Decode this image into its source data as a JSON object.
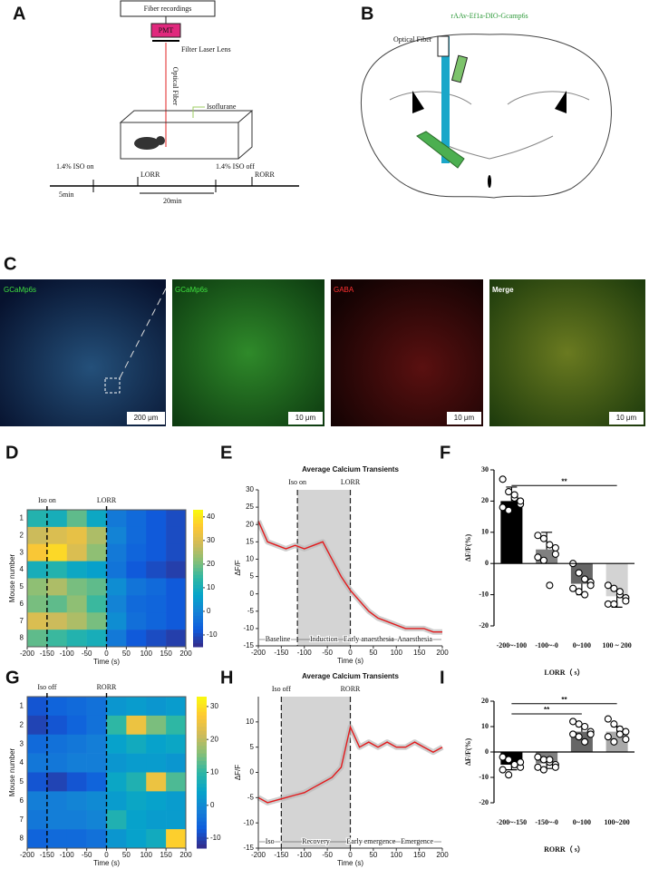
{
  "panel_a": {
    "label": "A",
    "box_title": "Fiber recordings",
    "pmt": "PMT",
    "filter": "Filter Laser Lens",
    "fiber": "Optical Fiber",
    "gas": "Isoflurane",
    "iso_on": "1.4% ISO  on",
    "lorr": "LORR",
    "iso_off": "1.4% ISO off",
    "rorr": "RORR",
    "pre": "5min",
    "span": "20min"
  },
  "panel_b": {
    "label": "B",
    "virus": "rAAv-Ef1a-DIO-Gcamp6s",
    "fiber": "Optical Fiber"
  },
  "panel_c": {
    "label": "C",
    "images": [
      {
        "title": "GCaMp6s",
        "scale": "200 μm"
      },
      {
        "title": "GCaMp6s",
        "scale": "10 μm"
      },
      {
        "title": "GABA",
        "scale": "10 μm"
      },
      {
        "title": "Merge",
        "scale": "10 μm"
      }
    ]
  },
  "chart_data": [
    {
      "type": "heatmap",
      "panel_label": "D",
      "ylabel": "Mouse number",
      "xlabel": "Time (s)",
      "rows": [
        1,
        2,
        3,
        4,
        5,
        6,
        7,
        8
      ],
      "xlim": [
        -200,
        200
      ],
      "xticks": [
        -200,
        -150,
        -100,
        -50,
        0,
        50,
        100,
        150,
        200
      ],
      "clim": [
        -15,
        43
      ],
      "cticks": [
        -10,
        0,
        10,
        20,
        30,
        40
      ],
      "markers": [
        {
          "x": -150,
          "label": "Iso on"
        },
        {
          "x": 0,
          "label": "LORR"
        }
      ],
      "values": [
        [
          12,
          10,
          18,
          8,
          -2,
          -5,
          -8,
          -10
        ],
        [
          28,
          30,
          32,
          25,
          0,
          -5,
          -8,
          -10
        ],
        [
          35,
          38,
          30,
          22,
          -2,
          -6,
          -8,
          -10
        ],
        [
          10,
          12,
          8,
          6,
          -3,
          -8,
          -10,
          -12
        ],
        [
          22,
          25,
          20,
          18,
          2,
          -3,
          -5,
          -8
        ],
        [
          20,
          18,
          22,
          15,
          0,
          -5,
          -6,
          -8
        ],
        [
          30,
          28,
          25,
          20,
          2,
          -4,
          -6,
          -8
        ],
        [
          18,
          15,
          12,
          10,
          -2,
          -8,
          -10,
          -12
        ]
      ]
    },
    {
      "type": "line",
      "panel_label": "E",
      "title": "Average Calcium Transients",
      "ylabel": "ΔF/F",
      "xlabel": "Time (s)",
      "xlim": [
        -200,
        200
      ],
      "xticks": [
        -200,
        -150,
        -100,
        -50,
        0,
        50,
        100,
        150,
        200
      ],
      "ylim": [
        -15,
        30
      ],
      "yticks": [
        -15,
        -10,
        -5,
        0,
        5,
        10,
        15,
        20,
        25,
        30
      ],
      "color": "#e31a1c",
      "markers": [
        {
          "x": -115,
          "label": "Iso on"
        },
        {
          "x": 0,
          "label": "LORR"
        }
      ],
      "phases": [
        {
          "label": "Baseline",
          "from": -200,
          "to": -115
        },
        {
          "label": "Induction",
          "from": -115,
          "to": 0
        },
        {
          "label": "Early anaesthesia",
          "from": 0,
          "to": 80
        },
        {
          "label": "Anaesthesia",
          "from": 80,
          "to": 200
        }
      ],
      "x": [
        -200,
        -180,
        -160,
        -140,
        -120,
        -100,
        -80,
        -60,
        -40,
        -20,
        0,
        20,
        40,
        60,
        80,
        100,
        120,
        140,
        160,
        180,
        200
      ],
      "values": [
        21,
        15,
        14,
        13,
        14,
        13,
        14,
        15,
        10,
        5,
        1,
        -2,
        -5,
        -7,
        -8,
        -9,
        -10,
        -10,
        -10,
        -11,
        -11
      ]
    },
    {
      "type": "bar",
      "panel_label": "F",
      "ylabel": "ΔF/F(%)",
      "xlabel": "LORR（ s）",
      "categories": [
        "-200~-100",
        "-100~-0",
        "0~100",
        "100 ~ 200"
      ],
      "values": [
        20,
        4.5,
        -6.5,
        -10.5
      ],
      "errors": [
        4.5,
        5.5,
        3.5,
        3.5
      ],
      "colors": [
        "#000000",
        "#808080",
        "#666666",
        "#d3d3d3"
      ],
      "points": [
        [
          27,
          23,
          21,
          19,
          18,
          17,
          22,
          20
        ],
        [
          9,
          8,
          6,
          3,
          2,
          1,
          -7,
          5
        ],
        [
          0,
          -3,
          -5,
          -6,
          -8,
          -9,
          -10,
          -7
        ],
        [
          -7,
          -8,
          -10,
          -11,
          -13,
          -13,
          -9,
          -12
        ]
      ],
      "ylim": [
        -20,
        30
      ],
      "yticks": [
        -20,
        -10,
        0,
        10,
        20,
        30
      ],
      "significance": [
        {
          "from": 0,
          "to": 3,
          "y": 25,
          "label": "**"
        }
      ]
    },
    {
      "type": "heatmap",
      "panel_label": "G",
      "ylabel": "Mouse number",
      "xlabel": "Time (s)",
      "rows": [
        1,
        2,
        3,
        4,
        5,
        6,
        7,
        8
      ],
      "xlim": [
        -200,
        200
      ],
      "xticks": [
        -200,
        -150,
        -100,
        -50,
        0,
        50,
        100,
        150,
        200
      ],
      "clim": [
        -13,
        33
      ],
      "cticks": [
        -10,
        0,
        10,
        20,
        30
      ],
      "markers": [
        {
          "x": -150,
          "label": "Iso off"
        },
        {
          "x": 0,
          "label": "RORR"
        }
      ],
      "values": [
        [
          -8,
          -6,
          -5,
          -4,
          2,
          3,
          2,
          3
        ],
        [
          -10,
          -8,
          -6,
          -4,
          10,
          25,
          15,
          10
        ],
        [
          -5,
          -4,
          -3,
          -2,
          4,
          6,
          4,
          5
        ],
        [
          -3,
          -3,
          -2,
          -2,
          2,
          3,
          3,
          2
        ],
        [
          -8,
          -10,
          -8,
          -6,
          5,
          8,
          25,
          12
        ],
        [
          -2,
          -2,
          -1,
          0,
          3,
          5,
          4,
          3
        ],
        [
          -3,
          -2,
          -2,
          -1,
          8,
          4,
          3,
          3
        ],
        [
          -6,
          -5,
          -5,
          -4,
          2,
          4,
          6,
          28
        ]
      ]
    },
    {
      "type": "line",
      "panel_label": "H",
      "title": "Average Calcium Transients",
      "ylabel": "ΔF/F",
      "xlabel": "Time (s)",
      "xlim": [
        -200,
        200
      ],
      "xticks": [
        -200,
        -150,
        -100,
        -50,
        0,
        50,
        100,
        150,
        200
      ],
      "ylim": [
        -15,
        15
      ],
      "yticks": [
        -15,
        -10,
        -5,
        0,
        5,
        10
      ],
      "color": "#e31a1c",
      "markers": [
        {
          "x": -150,
          "label": "Iso off"
        },
        {
          "x": 0,
          "label": "RORR"
        }
      ],
      "phases": [
        {
          "label": "Iso",
          "from": -200,
          "to": -150
        },
        {
          "label": "Recovery",
          "from": -150,
          "to": 0
        },
        {
          "label": "Early emergence",
          "from": 0,
          "to": 90
        },
        {
          "label": "Emergence",
          "from": 90,
          "to": 200
        }
      ],
      "x": [
        -200,
        -180,
        -160,
        -140,
        -120,
        -100,
        -80,
        -60,
        -40,
        -20,
        0,
        20,
        40,
        60,
        80,
        100,
        120,
        140,
        160,
        180,
        200
      ],
      "values": [
        -5,
        -6,
        -5.5,
        -5,
        -4.5,
        -4,
        -3,
        -2,
        -1,
        1,
        9,
        5,
        6,
        5,
        6,
        5,
        5,
        6,
        5,
        4,
        5
      ]
    },
    {
      "type": "bar",
      "panel_label": "I",
      "ylabel": "ΔF/F(%)",
      "xlabel": "RORR（ s）",
      "categories": [
        "-200~-150",
        "-150~-0",
        "0~100",
        "100~200"
      ],
      "values": [
        -5,
        -4.5,
        8,
        8
      ],
      "errors": [
        2,
        2,
        2,
        2
      ],
      "colors": [
        "#000000",
        "#808080",
        "#666666",
        "#a9a9a9"
      ],
      "points": [
        [
          -2,
          -3,
          -5,
          -6,
          -7,
          -9,
          -5,
          -4
        ],
        [
          -2,
          -3,
          -4,
          -5,
          -6,
          -7,
          -3,
          -6
        ],
        [
          12,
          11,
          10,
          8,
          7,
          6,
          4,
          7
        ],
        [
          13,
          11,
          9,
          8,
          6,
          4,
          7,
          5
        ]
      ],
      "ylim": [
        -20,
        20
      ],
      "yticks": [
        -20,
        -10,
        0,
        10,
        20
      ],
      "significance": [
        {
          "from": 0,
          "to": 2,
          "y": 15,
          "label": "**"
        },
        {
          "from": 0,
          "to": 3,
          "y": 19,
          "label": "**"
        }
      ]
    }
  ]
}
